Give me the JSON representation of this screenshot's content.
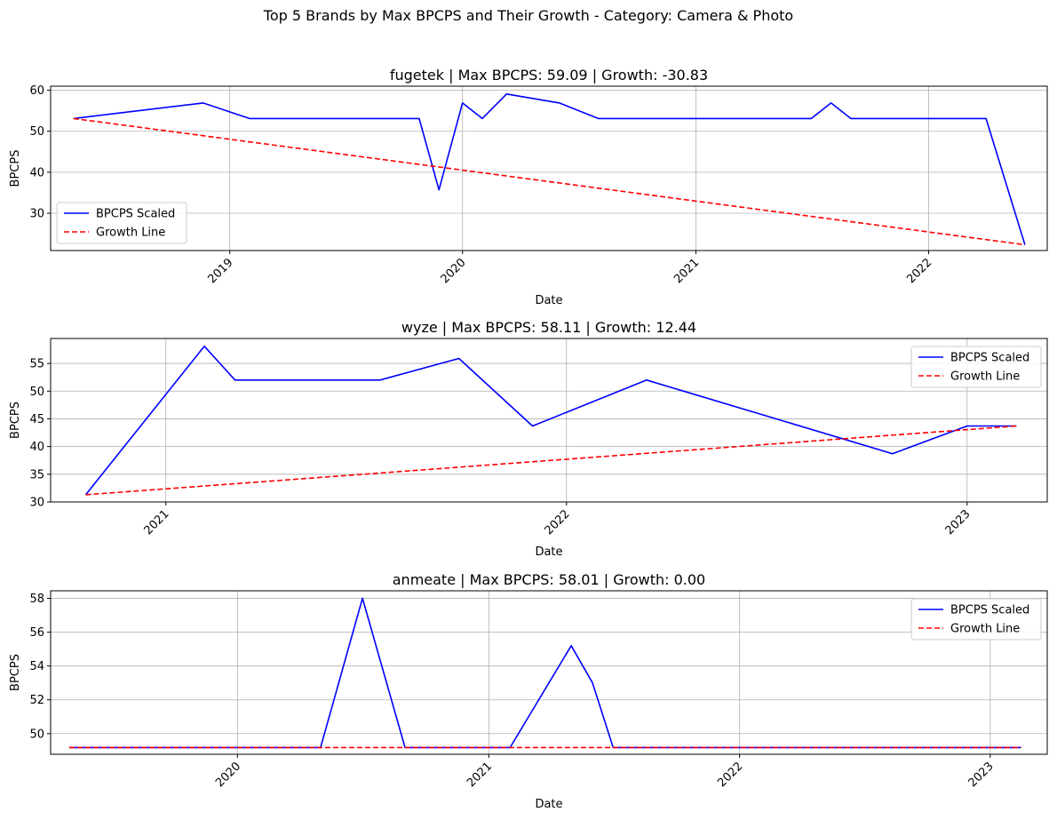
{
  "suptitle": "Top 5 Brands by Max BPCPS and Their Growth - Category: Camera & Photo",
  "colors": {
    "bpcps": "#0000ff",
    "growth": "#ff0000",
    "grid": "#b0b0b0",
    "axes": "#000000"
  },
  "chart_data": [
    {
      "type": "line",
      "title": "fugetek | Max BPCPS: 59.09 | Growth: -30.83",
      "xlabel": "Date",
      "ylabel": "BPCPS",
      "x_type": "date",
      "xlim": [
        "2018-03-26",
        "2022-07-06"
      ],
      "ylim": [
        20.9,
        61.0
      ],
      "xticks": [
        "2019-01-01",
        "2020-01-01",
        "2021-01-01",
        "2022-01-01"
      ],
      "xtick_labels": [
        "2019",
        "2020",
        "2021",
        "2022"
      ],
      "yticks": [
        30,
        40,
        50,
        60
      ],
      "ytick_labels": [
        "30",
        "40",
        "50",
        "60"
      ],
      "grid": true,
      "legend_loc": "lower left",
      "series": [
        {
          "name": "BPCPS Scaled",
          "color": "#0000ff",
          "style": "solid",
          "x": [
            "2018-05-01",
            "2018-11-20",
            "2019-02-01",
            "2019-10-25",
            "2019-11-25",
            "2020-01-01",
            "2020-02-01",
            "2020-03-10",
            "2020-06-01",
            "2020-08-01",
            "2021-07-01",
            "2021-08-01",
            "2021-09-01",
            "2022-04-01",
            "2022-06-01"
          ],
          "y": [
            53.1,
            56.9,
            53.1,
            53.1,
            35.7,
            56.9,
            53.1,
            59.09,
            56.9,
            53.1,
            53.1,
            56.9,
            53.1,
            53.1,
            22.3
          ]
        },
        {
          "name": "Growth Line",
          "color": "#ff0000",
          "style": "dashed",
          "x": [
            "2018-05-01",
            "2022-06-01"
          ],
          "y": [
            53.1,
            22.3
          ]
        }
      ]
    },
    {
      "type": "line",
      "title": "wyze | Max BPCPS: 58.11 | Growth: 12.44",
      "xlabel": "Date",
      "ylabel": "BPCPS",
      "x_type": "date",
      "xlim": [
        "2020-09-18",
        "2023-03-15"
      ],
      "ylim": [
        30.0,
        59.5
      ],
      "xticks": [
        "2021-01-01",
        "2022-01-01",
        "2023-01-01"
      ],
      "xtick_labels": [
        "2021",
        "2022",
        "2023"
      ],
      "yticks": [
        30,
        35,
        40,
        45,
        50,
        55
      ],
      "ytick_labels": [
        "30",
        "35",
        "40",
        "45",
        "50",
        "55"
      ],
      "grid": true,
      "legend_loc": "upper right",
      "series": [
        {
          "name": "BPCPS Scaled",
          "color": "#0000ff",
          "style": "solid",
          "x": [
            "2020-10-20",
            "2021-02-05",
            "2021-03-05",
            "2021-07-15",
            "2021-09-25",
            "2021-12-01",
            "2022-03-15",
            "2022-10-25",
            "2023-01-01",
            "2023-02-15"
          ],
          "y": [
            31.3,
            58.11,
            52.0,
            52.0,
            55.9,
            43.7,
            52.0,
            38.7,
            43.7,
            43.7
          ]
        },
        {
          "name": "Growth Line",
          "color": "#ff0000",
          "style": "dashed",
          "x": [
            "2020-10-20",
            "2023-02-15"
          ],
          "y": [
            31.3,
            43.7
          ]
        }
      ]
    },
    {
      "type": "line",
      "title": "anmeate | Max BPCPS: 58.01 | Growth: 0.00",
      "xlabel": "Date",
      "ylabel": "BPCPS",
      "x_type": "date",
      "xlim": [
        "2019-04-04",
        "2023-03-25"
      ],
      "ylim": [
        48.78,
        58.45
      ],
      "xticks": [
        "2020-01-01",
        "2021-01-01",
        "2022-01-01",
        "2023-01-01"
      ],
      "xtick_labels": [
        "2020",
        "2021",
        "2022",
        "2023"
      ],
      "yticks": [
        50,
        52,
        54,
        56,
        58
      ],
      "ytick_labels": [
        "50",
        "52",
        "54",
        "56",
        "58"
      ],
      "grid": true,
      "legend_loc": "upper right",
      "series": [
        {
          "name": "BPCPS Scaled",
          "color": "#0000ff",
          "style": "solid",
          "x": [
            "2019-05-01",
            "2020-05-01",
            "2020-07-01",
            "2020-09-01",
            "2021-02-01",
            "2021-05-01",
            "2021-06-01",
            "2021-07-01",
            "2023-02-15"
          ],
          "y": [
            49.18,
            49.18,
            58.01,
            49.18,
            49.18,
            55.2,
            53.0,
            49.18,
            49.18
          ]
        },
        {
          "name": "Growth Line",
          "color": "#ff0000",
          "style": "dashed",
          "x": [
            "2019-05-01",
            "2023-02-15"
          ],
          "y": [
            49.18,
            49.18
          ]
        }
      ]
    }
  ]
}
